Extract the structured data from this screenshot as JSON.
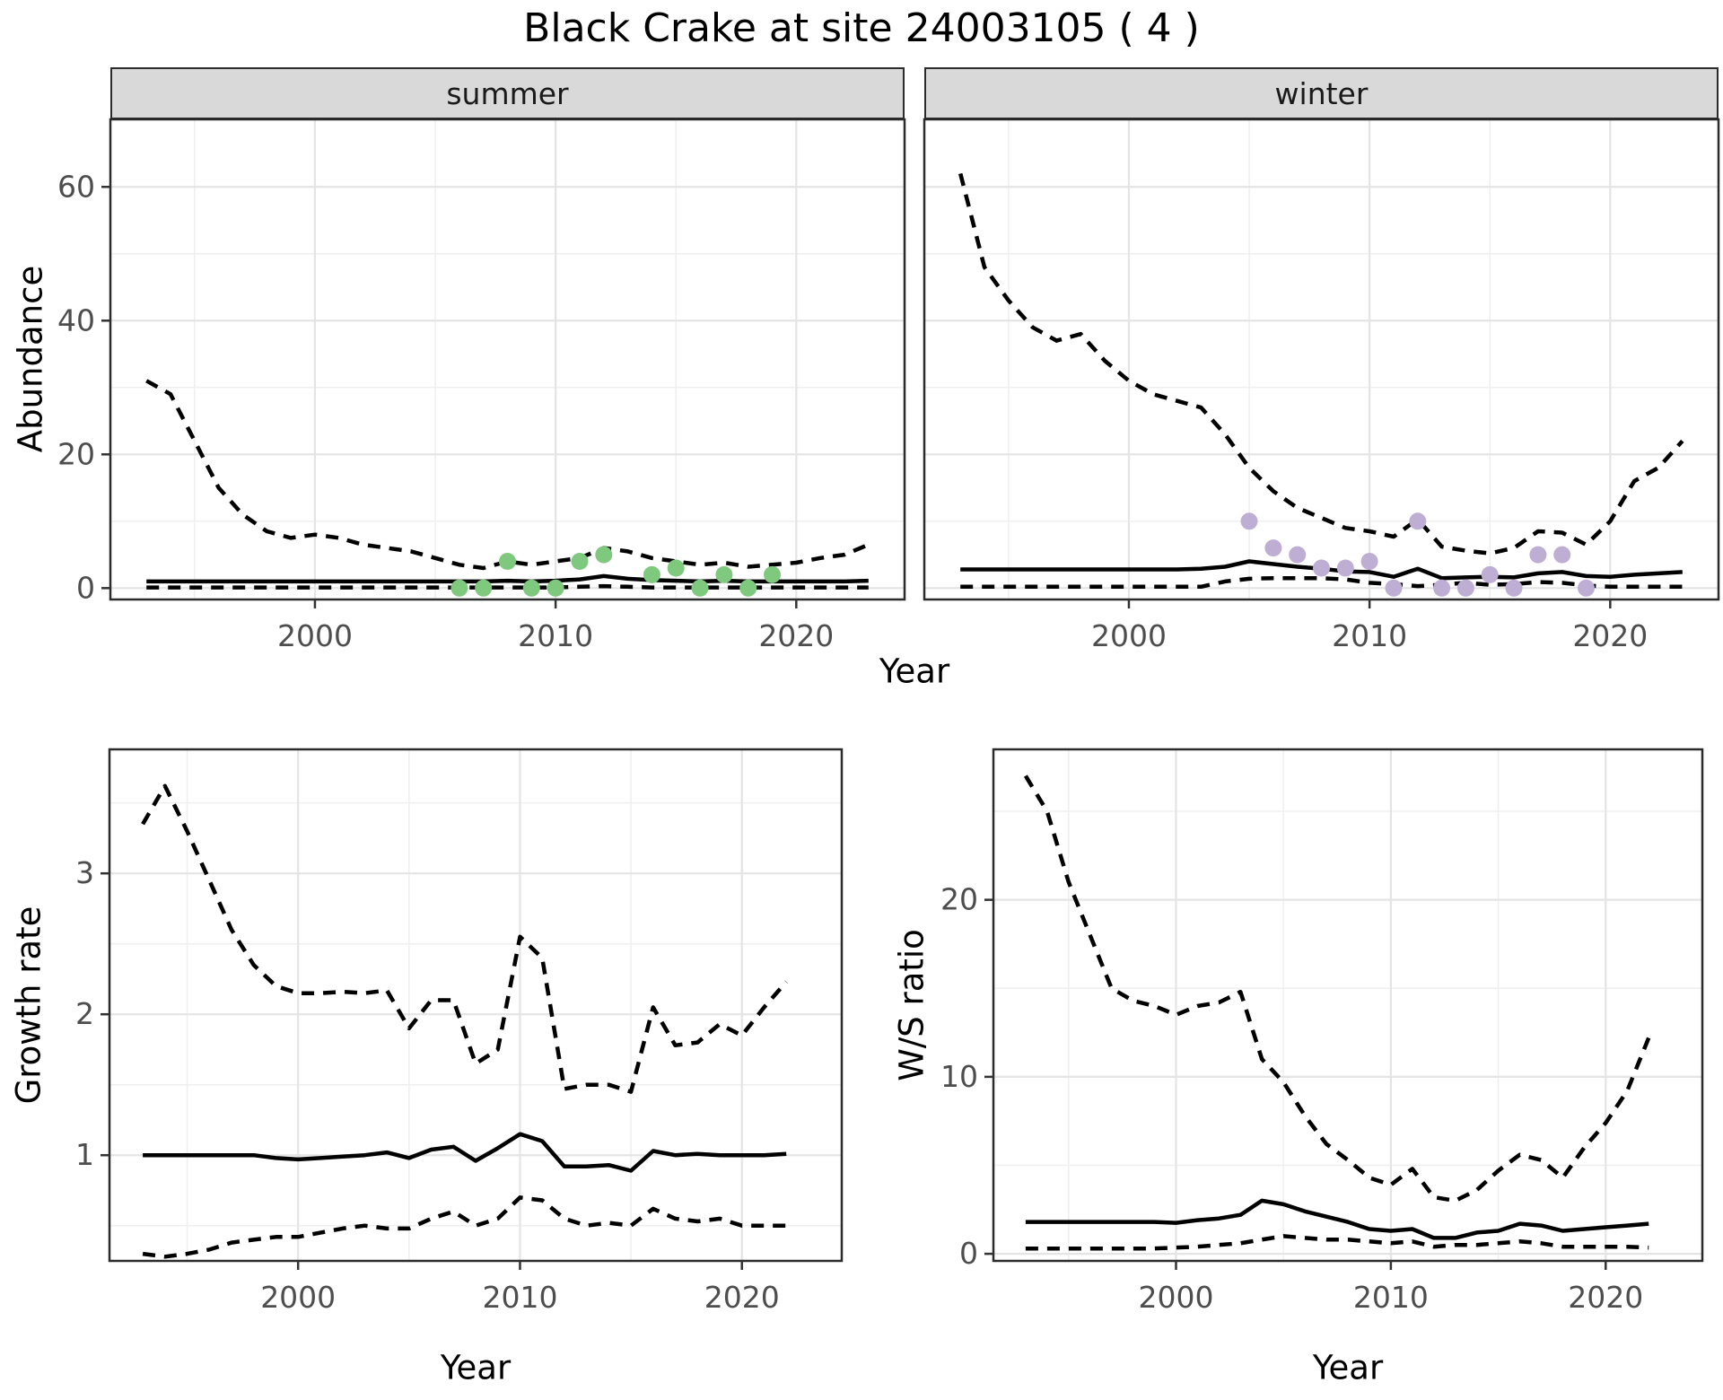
{
  "title": "Black Crake at site 24003105 ( 4 )",
  "colors": {
    "line": "#000000",
    "summer_points": "#7FC97F",
    "winter_points": "#BEAED4",
    "strip_bg": "#d9d9d9",
    "panel_border": "#2b2b2b",
    "grid_major": "#e4e4e4",
    "grid_minor": "#efefef",
    "tick": "#333333",
    "axis_text": "#4d4d4d"
  },
  "chart_data": [
    {
      "id": "summer",
      "type": "line",
      "facet_label": "summer",
      "xlabel": "Year",
      "ylabel": "Abundance",
      "xlim": [
        1991.5,
        2024.5
      ],
      "ylim": [
        -1.7,
        70.1
      ],
      "xticks": [
        2000,
        2010,
        2020
      ],
      "xminor": [
        1995,
        2005,
        2015
      ],
      "yticks": [
        0,
        20,
        40,
        60
      ],
      "yminor": [
        10,
        30,
        50
      ],
      "show_y_labels": true,
      "x": [
        1993,
        1994,
        1995,
        1996,
        1997,
        1998,
        1999,
        2000,
        2001,
        2002,
        2003,
        2004,
        2005,
        2006,
        2007,
        2008,
        2009,
        2010,
        2011,
        2012,
        2013,
        2014,
        2015,
        2016,
        2017,
        2018,
        2019,
        2020,
        2021,
        2022,
        2023
      ],
      "series": [
        {
          "name": "upper-ci",
          "style": "dashed",
          "values": [
            31,
            29,
            22,
            15,
            11,
            8.5,
            7.5,
            8,
            7.5,
            6.5,
            6,
            5.5,
            4.5,
            3.5,
            3,
            4,
            3.5,
            4,
            4.5,
            6,
            5.5,
            4.5,
            4,
            3.5,
            3.8,
            3.2,
            3.5,
            3.8,
            4.5,
            5,
            6.5
          ]
        },
        {
          "name": "mean",
          "style": "solid",
          "values": [
            1,
            1,
            1,
            1,
            1,
            1,
            1,
            1,
            1,
            1,
            1,
            1,
            1,
            1,
            1,
            1.1,
            1,
            1.1,
            1.3,
            1.8,
            1.4,
            1.2,
            1.1,
            1,
            1.1,
            1,
            1,
            1,
            1,
            1,
            1.1
          ]
        },
        {
          "name": "lower-ci",
          "style": "dashed",
          "values": [
            0.1,
            0.1,
            0.1,
            0.1,
            0.1,
            0.1,
            0.1,
            0.1,
            0.1,
            0.1,
            0.1,
            0.1,
            0.1,
            0.1,
            0.1,
            0.1,
            0.1,
            0.1,
            0.2,
            0.3,
            0.2,
            0.1,
            0.1,
            0.1,
            0.1,
            0.1,
            0.1,
            0.1,
            0.1,
            0.1,
            0.1
          ]
        }
      ],
      "points": {
        "name": "observed-counts-summer",
        "color": "#7FC97F",
        "x": [
          2006,
          2007,
          2008,
          2009,
          2010,
          2011,
          2012,
          2014,
          2015,
          2016,
          2017,
          2018,
          2019
        ],
        "y": [
          0,
          0,
          4,
          0,
          0,
          4,
          5,
          2,
          3,
          0,
          2,
          0,
          2
        ]
      }
    },
    {
      "id": "winter",
      "type": "line",
      "facet_label": "winter",
      "xlabel": "Year",
      "ylabel": "Abundance",
      "xlim": [
        1991.5,
        2024.5
      ],
      "ylim": [
        -1.7,
        70.1
      ],
      "xticks": [
        2000,
        2010,
        2020
      ],
      "xminor": [
        1995,
        2005,
        2015
      ],
      "yticks": [
        0,
        20,
        40,
        60
      ],
      "yminor": [
        10,
        30,
        50
      ],
      "show_y_labels": false,
      "x": [
        1993,
        1994,
        1995,
        1996,
        1997,
        1998,
        1999,
        2000,
        2001,
        2002,
        2003,
        2004,
        2005,
        2006,
        2007,
        2008,
        2009,
        2010,
        2011,
        2012,
        2013,
        2014,
        2015,
        2016,
        2017,
        2018,
        2019,
        2020,
        2021,
        2022,
        2023
      ],
      "series": [
        {
          "name": "upper-ci",
          "style": "dashed",
          "values": [
            62,
            48,
            43,
            39,
            37,
            38,
            34,
            31,
            29,
            28,
            27,
            23,
            18,
            14.5,
            12,
            10.5,
            9,
            8.5,
            7.7,
            10.3,
            6.2,
            5.6,
            5.2,
            6,
            8.5,
            8.3,
            6.5,
            10,
            16,
            18,
            22
          ]
        },
        {
          "name": "mean",
          "style": "solid",
          "values": [
            2.8,
            2.8,
            2.8,
            2.8,
            2.8,
            2.8,
            2.8,
            2.8,
            2.8,
            2.8,
            2.9,
            3.2,
            4,
            3.6,
            3.2,
            2.9,
            2.5,
            2.4,
            1.7,
            2.9,
            1.5,
            1.6,
            1.7,
            1.6,
            2.2,
            2.4,
            1.8,
            1.7,
            2,
            2.2,
            2.4
          ]
        },
        {
          "name": "lower-ci",
          "style": "dashed",
          "values": [
            0.2,
            0.2,
            0.2,
            0.2,
            0.2,
            0.2,
            0.2,
            0.2,
            0.2,
            0.2,
            0.2,
            1,
            1.4,
            1.5,
            1.5,
            1.5,
            1.3,
            0.8,
            0.6,
            0.3,
            0.5,
            0.8,
            0.5,
            0.6,
            0.9,
            0.8,
            0.4,
            0.2,
            0.2,
            0.2,
            0.2
          ]
        }
      ],
      "points": {
        "name": "observed-counts-winter",
        "color": "#BEAED4",
        "x": [
          2005,
          2006,
          2007,
          2008,
          2009,
          2010,
          2011,
          2012,
          2013,
          2014,
          2015,
          2016,
          2017,
          2018,
          2019
        ],
        "y": [
          10,
          6,
          5,
          3,
          3,
          4,
          0,
          10,
          0,
          0,
          2,
          0,
          5,
          5,
          0
        ]
      }
    },
    {
      "id": "growth",
      "type": "line",
      "facet_label": "",
      "xlabel": "Year",
      "ylabel": "Growth rate",
      "xlim": [
        1991.5,
        2024.5
      ],
      "ylim": [
        0.25,
        3.88
      ],
      "xticks": [
        2000,
        2010,
        2020
      ],
      "xminor": [
        1995,
        2005,
        2015
      ],
      "yticks": [
        1,
        2,
        3
      ],
      "yminor": [
        0.5,
        1.5,
        2.5,
        3.5
      ],
      "show_y_labels": true,
      "x": [
        1993,
        1994,
        1995,
        1996,
        1997,
        1998,
        1999,
        2000,
        2001,
        2002,
        2003,
        2004,
        2005,
        2006,
        2007,
        2008,
        2009,
        2010,
        2011,
        2012,
        2013,
        2014,
        2015,
        2016,
        2017,
        2018,
        2019,
        2020,
        2021,
        2022
      ],
      "series": [
        {
          "name": "upper-ci",
          "style": "dashed",
          "values": [
            3.35,
            3.62,
            3.3,
            2.95,
            2.6,
            2.35,
            2.2,
            2.15,
            2.15,
            2.16,
            2.15,
            2.17,
            1.9,
            2.1,
            2.1,
            1.65,
            1.75,
            2.55,
            2.4,
            1.47,
            1.5,
            1.5,
            1.45,
            2.05,
            1.78,
            1.8,
            1.93,
            1.85,
            2.05,
            2.23
          ]
        },
        {
          "name": "mean",
          "style": "solid",
          "values": [
            1,
            1,
            1,
            1,
            1,
            1,
            0.98,
            0.97,
            0.98,
            0.99,
            1,
            1.02,
            0.98,
            1.04,
            1.06,
            0.96,
            1.05,
            1.15,
            1.1,
            0.92,
            0.92,
            0.93,
            0.89,
            1.03,
            1,
            1.01,
            1,
            1,
            1,
            1.01
          ]
        },
        {
          "name": "lower-ci",
          "style": "dashed",
          "values": [
            0.3,
            0.28,
            0.3,
            0.33,
            0.38,
            0.4,
            0.42,
            0.42,
            0.45,
            0.48,
            0.5,
            0.48,
            0.48,
            0.55,
            0.6,
            0.5,
            0.55,
            0.7,
            0.68,
            0.55,
            0.5,
            0.52,
            0.5,
            0.62,
            0.55,
            0.53,
            0.55,
            0.5,
            0.5,
            0.5
          ]
        }
      ],
      "points": null
    },
    {
      "id": "ws",
      "type": "line",
      "facet_label": "",
      "xlabel": "Year",
      "ylabel": "W/S ratio",
      "xlim": [
        1991.5,
        2024.5
      ],
      "ylim": [
        -0.4,
        28.5
      ],
      "xticks": [
        2000,
        2010,
        2020
      ],
      "xminor": [
        1995,
        2005,
        2015
      ],
      "yticks": [
        0,
        10,
        20
      ],
      "yminor": [
        5,
        15,
        25
      ],
      "show_y_labels": true,
      "x": [
        1993,
        1994,
        1995,
        1996,
        1997,
        1998,
        1999,
        2000,
        2001,
        2002,
        2003,
        2004,
        2005,
        2006,
        2007,
        2008,
        2009,
        2010,
        2011,
        2012,
        2013,
        2014,
        2015,
        2016,
        2017,
        2018,
        2019,
        2020,
        2021,
        2022
      ],
      "series": [
        {
          "name": "upper-ci",
          "style": "dashed",
          "values": [
            27,
            25,
            21,
            18,
            15,
            14.3,
            14,
            13.5,
            14,
            14.2,
            14.8,
            11,
            9.7,
            7.8,
            6.2,
            5.3,
            4.3,
            3.9,
            4.8,
            3.2,
            3,
            3.6,
            4.7,
            5.6,
            5.3,
            4.3,
            6,
            7.4,
            9.2,
            12.2
          ]
        },
        {
          "name": "mean",
          "style": "solid",
          "values": [
            1.8,
            1.8,
            1.8,
            1.8,
            1.8,
            1.8,
            1.8,
            1.75,
            1.9,
            2,
            2.2,
            3,
            2.8,
            2.4,
            2.1,
            1.8,
            1.4,
            1.3,
            1.4,
            0.9,
            0.9,
            1.2,
            1.3,
            1.7,
            1.6,
            1.3,
            1.4,
            1.5,
            1.6,
            1.7
          ]
        },
        {
          "name": "lower-ci",
          "style": "dashed",
          "values": [
            0.3,
            0.3,
            0.3,
            0.3,
            0.3,
            0.3,
            0.3,
            0.35,
            0.4,
            0.5,
            0.6,
            0.8,
            1,
            0.9,
            0.8,
            0.8,
            0.7,
            0.6,
            0.7,
            0.4,
            0.5,
            0.5,
            0.6,
            0.7,
            0.6,
            0.4,
            0.4,
            0.4,
            0.4,
            0.35
          ]
        }
      ],
      "points": null
    }
  ]
}
